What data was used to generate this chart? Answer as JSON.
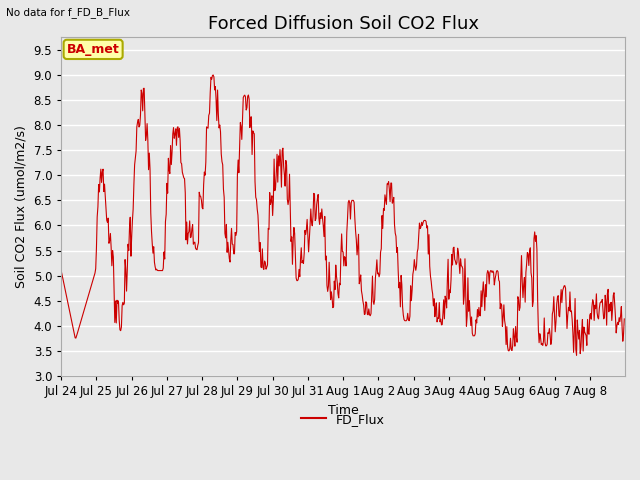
{
  "title": "Forced Diffusion Soil CO2 Flux",
  "xlabel": "Time",
  "ylabel_display": "Soil CO2 Flux (umol/m2/s)",
  "no_data_text": "No data for f_FD_B_Flux",
  "ba_met_label": "BA_met",
  "legend_label": "FD_Flux",
  "line_color": "#cc0000",
  "line_width": 0.8,
  "ylim": [
    3.0,
    9.75
  ],
  "yticks": [
    3.0,
    3.5,
    4.0,
    4.5,
    5.0,
    5.5,
    6.0,
    6.5,
    7.0,
    7.5,
    8.0,
    8.5,
    9.0,
    9.5
  ],
  "background_color": "#e8e8e8",
  "plot_bg_color": "#e8e8e8",
  "ba_met_bg": "#ffffaa",
  "ba_met_border": "#aaaa00",
  "ba_met_text_color": "#cc0000",
  "title_fontsize": 13,
  "tick_label_fontsize": 8.5,
  "axis_label_fontsize": 9,
  "x_dates": [
    "Jul 24",
    "Jul 25",
    "Jul 26",
    "Jul 27",
    "Jul 28",
    "Jul 29",
    "Jul 30",
    "Jul 31",
    "Aug 1",
    "Aug 2",
    "Aug 3",
    "Aug 4",
    "Aug 5",
    "Aug 6",
    "Aug 7",
    "Aug 8"
  ],
  "figsize": [
    6.4,
    4.8
  ],
  "dpi": 100
}
